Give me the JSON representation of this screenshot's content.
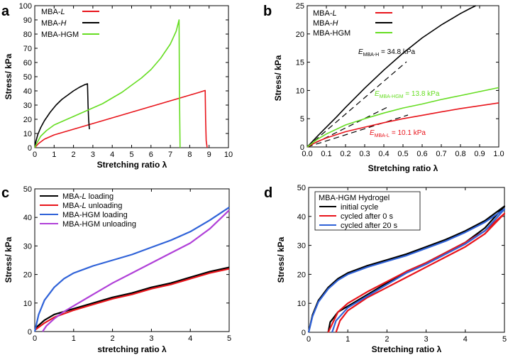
{
  "chart_data": [
    {
      "panel": "a",
      "type": "line",
      "xlabel": "Stretching ratio λ",
      "ylabel": "Stress/ kPa",
      "xlim": [
        0,
        10
      ],
      "ylim": [
        0,
        100
      ],
      "xticks": [
        0,
        1,
        2,
        3,
        4,
        5,
        6,
        7,
        8,
        9,
        10
      ],
      "yticks": [
        0,
        10,
        20,
        30,
        40,
        50,
        60,
        70,
        80,
        90,
        100
      ],
      "legend_position": "top-left",
      "series": [
        {
          "name": "MBA-L",
          "legend_pre": "MBA-",
          "legend_em": "L",
          "color": "#e8141b",
          "x": [
            0,
            0.2,
            0.5,
            1,
            1.5,
            2,
            2.5,
            3,
            3.5,
            4,
            4.5,
            5,
            5.5,
            6,
            6.5,
            7,
            7.5,
            8,
            8.5,
            8.8,
            8.82,
            8.85,
            8.9
          ],
          "y": [
            0,
            3,
            6,
            9,
            11,
            13,
            15,
            17,
            19,
            21,
            23,
            25,
            27,
            29,
            31,
            33,
            35,
            37,
            39,
            40.3,
            20,
            5,
            0
          ]
        },
        {
          "name": "MBA-H",
          "legend_pre": "MBA-",
          "legend_em": "H",
          "color": "#000000",
          "x": [
            0,
            0.05,
            0.15,
            0.3,
            0.5,
            0.8,
            1.1,
            1.4,
            1.7,
            2,
            2.3,
            2.6,
            2.72,
            2.75,
            2.78,
            2.82
          ],
          "y": [
            0,
            4,
            9,
            14,
            19,
            25,
            30,
            34,
            37,
            40,
            42.5,
            44.5,
            45,
            30,
            20,
            13
          ]
        },
        {
          "name": "MBA-HGM",
          "legend_pre": "MBA-HGM",
          "legend_em": "",
          "color": "#66dd22",
          "x": [
            0,
            0.1,
            0.3,
            0.6,
            1,
            1.5,
            2,
            2.5,
            3,
            3.5,
            4,
            4.5,
            5,
            5.5,
            6,
            6.5,
            7,
            7.3,
            7.45,
            7.47,
            7.5
          ],
          "y": [
            0,
            3,
            8,
            12,
            16,
            19,
            22,
            25,
            28,
            31,
            35,
            39,
            44,
            49,
            55,
            63,
            73,
            82,
            90,
            40,
            0
          ]
        }
      ]
    },
    {
      "panel": "b",
      "type": "line",
      "xlabel": "Stretching ratio λ",
      "ylabel": "Stress/ kPa",
      "xlim": [
        0,
        1.0
      ],
      "ylim": [
        0,
        25
      ],
      "xticks": [
        "0.0",
        "0.1",
        "0.2",
        "0.3",
        "0.4",
        "0.5",
        "0.6",
        "0.7",
        "0.8",
        "0.9",
        "1.0"
      ],
      "yticks": [
        0,
        5,
        10,
        15,
        20,
        25
      ],
      "legend_position": "top-left",
      "annotations": [
        {
          "pre": "E",
          "sub": "MBA-H",
          "post": " = 34.8 kPa",
          "color": "#000000"
        },
        {
          "pre": "E",
          "sub": "MBA-HGM",
          "post": " = 13.8 kPa",
          "color": "#66dd22"
        },
        {
          "pre": "E",
          "sub": "MBA-L",
          "post": " = 10.1 kPa",
          "color": "#e8141b"
        }
      ],
      "series": [
        {
          "name": "MBA-L",
          "legend_pre": "MBA-",
          "legend_em": "L",
          "color": "#e8141b",
          "x": [
            0,
            0.05,
            0.1,
            0.2,
            0.3,
            0.4,
            0.5,
            0.6,
            0.7,
            0.8,
            0.9,
            1.0
          ],
          "y": [
            0,
            0.9,
            1.6,
            2.7,
            3.5,
            4.3,
            5.0,
            5.6,
            6.2,
            6.8,
            7.3,
            7.8
          ]
        },
        {
          "name": "MBA-H",
          "legend_pre": "MBA-",
          "legend_em": "H",
          "color": "#000000",
          "x": [
            0,
            0.05,
            0.1,
            0.15,
            0.2,
            0.3,
            0.4,
            0.5,
            0.6,
            0.7,
            0.8,
            0.85,
            0.88
          ],
          "y": [
            0,
            1.8,
            3.5,
            5.2,
            7,
            10.4,
            13.6,
            16.6,
            19.3,
            21.6,
            23.6,
            24.5,
            25
          ]
        },
        {
          "name": "MBA-HGM",
          "legend_pre": "MBA-HGM",
          "legend_em": "",
          "color": "#66dd22",
          "x": [
            0,
            0.05,
            0.1,
            0.2,
            0.3,
            0.4,
            0.5,
            0.6,
            0.7,
            0.8,
            0.9,
            1.0
          ],
          "y": [
            0,
            1.3,
            2.3,
            3.9,
            5.0,
            6.0,
            6.9,
            7.6,
            8.4,
            9.1,
            9.8,
            10.5
          ]
        }
      ]
    },
    {
      "panel": "c",
      "type": "line",
      "xlabel": "stretching ratio λ",
      "ylabel": "Stress/ kPa",
      "xlim": [
        0,
        5
      ],
      "ylim": [
        0,
        50
      ],
      "xticks": [
        0,
        1,
        2,
        3,
        4,
        5
      ],
      "yticks": [
        0,
        10,
        20,
        30,
        40,
        50
      ],
      "legend_position": "top-left",
      "series": [
        {
          "name": "MBA-L loading",
          "legend_pre": "MBA-",
          "legend_em": "L",
          "legend_post": " loading",
          "color": "#000000",
          "x": [
            0,
            0.25,
            0.5,
            1,
            1.5,
            2,
            2.5,
            3,
            3.5,
            4,
            4.5,
            5
          ],
          "y": [
            1,
            4,
            6,
            8,
            10,
            12,
            13.5,
            15.5,
            17,
            19,
            21,
            22.5
          ]
        },
        {
          "name": "MBA-L unloading",
          "legend_pre": "MBA-",
          "legend_em": "L",
          "legend_post": " unloading",
          "color": "#e8141b",
          "x": [
            0,
            0.25,
            0.5,
            1,
            1.5,
            2,
            2.5,
            3,
            3.5,
            4,
            4.5,
            5
          ],
          "y": [
            0.5,
            3,
            5,
            7.5,
            9.5,
            11.5,
            13,
            15,
            16.5,
            18.5,
            20.5,
            22
          ]
        },
        {
          "name": "MBA-HGM loading",
          "legend_pre": "MBA-HGM loading",
          "legend_em": "",
          "legend_post": "",
          "color": "#2f62d8",
          "x": [
            0,
            0.1,
            0.25,
            0.5,
            0.75,
            1,
            1.5,
            2,
            2.5,
            3,
            3.5,
            4,
            4.5,
            5
          ],
          "y": [
            0,
            6,
            11,
            15.5,
            18.5,
            20.5,
            23,
            25,
            27,
            29.5,
            32,
            35,
            39,
            43.5
          ]
        },
        {
          "name": "MBA-HGM unloading",
          "legend_pre": "MBA-HGM unloading",
          "legend_em": "",
          "legend_post": "",
          "color": "#b040d8",
          "x": [
            0.2,
            0.3,
            0.5,
            0.75,
            1,
            1.5,
            2,
            2.5,
            3,
            3.5,
            4,
            4.5,
            5
          ],
          "y": [
            0,
            2,
            4.5,
            7,
            9,
            13,
            17,
            20.5,
            24,
            27.5,
            31,
            36,
            42.5
          ]
        }
      ]
    },
    {
      "panel": "d",
      "type": "line",
      "xlabel": "Stretching ratio λ",
      "ylabel": "Stress/ kPa",
      "xlim": [
        0,
        5
      ],
      "ylim": [
        0,
        50
      ],
      "xticks": [
        0,
        1,
        2,
        3,
        4,
        5
      ],
      "yticks": [
        0,
        10,
        20,
        30,
        40,
        50
      ],
      "legend_position": "top-left",
      "legend_title": "MBA-HGM Hydrogel",
      "series": [
        {
          "name": "initial cycle",
          "legend_pre": "initial cycle",
          "legend_em": "",
          "color": "#000000",
          "x": [
            0,
            0.1,
            0.25,
            0.5,
            0.75,
            1,
            1.5,
            2,
            2.5,
            3,
            3.5,
            4,
            4.5,
            5,
            4.5,
            4,
            3.5,
            3,
            2.5,
            2,
            1.5,
            1,
            0.75,
            0.55,
            0.5
          ],
          "y": [
            0,
            6,
            11,
            15.5,
            18.5,
            20.5,
            23,
            25,
            27,
            29.5,
            32,
            35,
            38.5,
            43.5,
            36,
            31,
            27.5,
            24,
            21,
            17,
            13,
            9,
            7,
            3.5,
            0
          ]
        },
        {
          "name": "cycled after 0 s",
          "legend_pre": "cycled after 0 s",
          "legend_em": "",
          "color": "#e8141b",
          "x": [
            0.5,
            0.75,
            1,
            1.5,
            2,
            2.5,
            3,
            3.5,
            4,
            4.5,
            5,
            4.5,
            4,
            3.5,
            3,
            2.5,
            2,
            1.5,
            1,
            0.8,
            0.7
          ],
          "y": [
            0,
            7,
            10,
            14,
            17.5,
            21,
            24,
            27.5,
            31,
            35,
            41,
            34,
            29.5,
            26,
            22.5,
            19,
            15.5,
            12,
            7.5,
            4,
            0
          ]
        },
        {
          "name": "cycled after 20 s",
          "legend_pre": "cycled after 20 s",
          "legend_em": "",
          "color": "#2f62d8",
          "x": [
            0,
            0.1,
            0.25,
            0.5,
            0.75,
            1,
            1.5,
            2,
            2.5,
            3,
            3.5,
            4,
            4.5,
            5,
            4.5,
            4,
            3.5,
            3,
            2.5,
            2,
            1.5,
            1,
            0.7,
            0.6
          ],
          "y": [
            0,
            5.5,
            10.5,
            15,
            18,
            20,
            22.5,
            24.5,
            26.5,
            29,
            31.5,
            34.5,
            38,
            42.5,
            35,
            30.5,
            27,
            23.5,
            20.5,
            16.5,
            12.5,
            8.5,
            4,
            0
          ]
        }
      ]
    }
  ]
}
